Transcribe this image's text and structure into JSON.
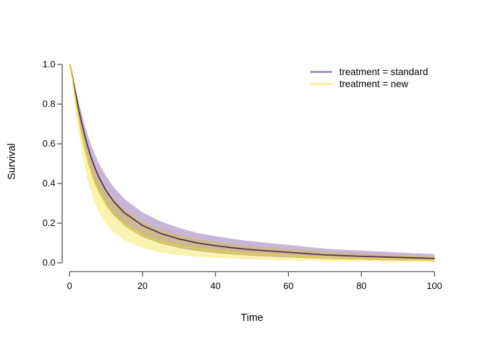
{
  "chart_data": {
    "type": "line",
    "title": "",
    "xlabel": "Time",
    "ylabel": "Survival",
    "xlim": [
      0,
      100
    ],
    "ylim": [
      0,
      1
    ],
    "grid": false,
    "background": "#ffffff",
    "axis_color": "#545454",
    "text_color": "#000000",
    "band_overlap_color": "#cdb990",
    "x_ticks": [
      0,
      20,
      40,
      60,
      80,
      100
    ],
    "x_tick_labels": [
      "0",
      "20",
      "40",
      "60",
      "80",
      "100"
    ],
    "y_ticks": [
      0,
      0.2,
      0.4,
      0.6,
      0.8,
      1.0
    ],
    "y_tick_labels": [
      "0.0",
      "0.2",
      "0.4",
      "0.6",
      "0.8",
      "1.0"
    ],
    "legend": {
      "position": "top-right",
      "entries": [
        {
          "label": "treatment = standard",
          "swatch_color": "#a78fba"
        },
        {
          "label": "treatment = new",
          "swatch_color": "#f8ef93"
        }
      ]
    },
    "x": [
      0,
      0.5,
      1,
      1.5,
      2,
      2.5,
      3,
      4,
      5,
      6,
      7,
      8,
      10,
      12,
      15,
      20,
      25,
      30,
      35,
      40,
      45,
      50,
      60,
      70,
      80,
      90,
      100
    ],
    "series": [
      {
        "name": "treatment = standard",
        "line_color": "#552a55",
        "band_color": "#c8b6d9",
        "values": [
          1,
          0.966,
          0.919,
          0.871,
          0.822,
          0.776,
          0.732,
          0.653,
          0.585,
          0.526,
          0.476,
          0.433,
          0.364,
          0.311,
          0.252,
          0.188,
          0.148,
          0.12,
          0.1,
          0.086,
          0.075,
          0.066,
          0.053,
          0.04,
          0.033,
          0.027,
          0.022
        ],
        "upper": [
          1,
          0.972,
          0.933,
          0.893,
          0.852,
          0.812,
          0.774,
          0.705,
          0.644,
          0.59,
          0.544,
          0.503,
          0.437,
          0.384,
          0.323,
          0.254,
          0.209,
          0.176,
          0.151,
          0.134,
          0.12,
          0.108,
          0.09,
          0.071,
          0.061,
          0.052,
          0.044
        ],
        "lower": [
          1,
          0.959,
          0.902,
          0.845,
          0.787,
          0.734,
          0.684,
          0.595,
          0.52,
          0.457,
          0.404,
          0.36,
          0.291,
          0.241,
          0.186,
          0.13,
          0.097,
          0.075,
          0.06,
          0.05,
          0.042,
          0.036,
          0.028,
          0.02,
          0.016,
          0.012,
          0.01
        ]
      },
      {
        "name": "treatment = new",
        "line_color": "#e5d435",
        "band_color": "#faf3b0",
        "values": [
          1,
          0.959,
          0.903,
          0.843,
          0.784,
          0.729,
          0.678,
          0.587,
          0.513,
          0.452,
          0.401,
          0.359,
          0.293,
          0.244,
          0.193,
          0.14,
          0.107,
          0.086,
          0.071,
          0.06,
          0.052,
          0.045,
          0.036,
          0.027,
          0.021,
          0.017,
          0.013
        ],
        "upper": [
          1,
          0.967,
          0.922,
          0.872,
          0.823,
          0.777,
          0.733,
          0.653,
          0.586,
          0.53,
          0.481,
          0.441,
          0.375,
          0.324,
          0.268,
          0.208,
          0.167,
          0.141,
          0.121,
          0.105,
          0.094,
          0.084,
          0.07,
          0.056,
          0.046,
          0.038,
          0.031
        ],
        "lower": [
          1,
          0.946,
          0.874,
          0.798,
          0.725,
          0.659,
          0.599,
          0.495,
          0.414,
          0.351,
          0.299,
          0.259,
          0.198,
          0.155,
          0.114,
          0.075,
          0.052,
          0.039,
          0.031,
          0.024,
          0.02,
          0.017,
          0.012,
          0.009,
          0.006,
          0.005,
          0.003
        ]
      }
    ]
  }
}
